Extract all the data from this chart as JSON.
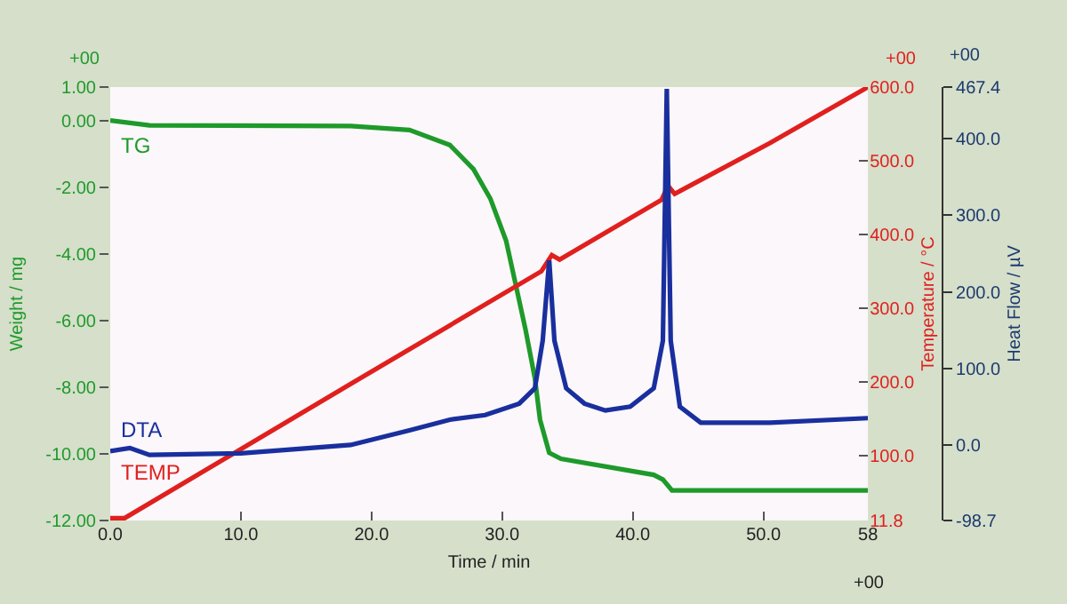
{
  "chart_data": {
    "type": "line",
    "xlabel": "Time / min",
    "ylabel": "Weight / mg",
    "y2label": "Temperature / °C",
    "y3label": "Heat Flow / µV",
    "annotations": [
      "+00",
      "+00",
      "+00",
      "+00"
    ],
    "xlim": [
      0,
      58
    ],
    "xticks": [
      {
        "value": 0,
        "label": "0.0"
      },
      {
        "value": 10,
        "label": "10.0"
      },
      {
        "value": 20,
        "label": "20.0"
      },
      {
        "value": 30,
        "label": "30.0"
      },
      {
        "value": 40,
        "label": "40.0"
      },
      {
        "value": 50,
        "label": "50.0"
      },
      58
    ],
    "ylim": [
      -12,
      1
    ],
    "yticks": [
      {
        "value": 1,
        "label": "1.00"
      },
      {
        "value": 0,
        "label": "0.00"
      },
      {
        "value": -2,
        "label": "-2.00"
      },
      {
        "value": -4,
        "label": "-4.00"
      },
      {
        "value": -6,
        "label": "-6.00"
      },
      {
        "value": -8,
        "label": "-8.00"
      },
      {
        "value": -10,
        "label": "-10.00"
      },
      {
        "value": -12,
        "label": "-12.00"
      }
    ],
    "y2lim": [
      11.8,
      600
    ],
    "y2ticks": [
      11.8,
      {
        "value": 100,
        "label": "100.0"
      },
      {
        "value": 200,
        "label": "200.0"
      },
      {
        "value": 300,
        "label": "300.0"
      },
      {
        "value": 400,
        "label": "400.0"
      },
      {
        "value": 500,
        "label": "500.0"
      },
      {
        "value": 600,
        "label": "600.0"
      }
    ],
    "y3lim": [
      -98.7,
      467.4
    ],
    "y3ticks": [
      -98.7,
      {
        "value": 0,
        "label": "0.0"
      },
      {
        "value": 100,
        "label": "100.0"
      },
      {
        "value": 200,
        "label": "200.0"
      },
      {
        "value": 300,
        "label": "300.0"
      },
      {
        "value": 400,
        "label": "400.0"
      },
      467.4
    ],
    "grid": false,
    "legend": false,
    "marker": "none",
    "line_style": "solid",
    "series": [
      {
        "name": "TG",
        "color": "#1e9a2a",
        "axis": "y",
        "x": [
          0,
          3,
          18.4,
          22.9,
          26.0,
          27.8,
          29.1,
          30.3,
          31.1,
          31.8,
          32.5,
          32.9,
          33.6,
          34.5,
          41.6,
          42.3,
          43.0,
          50.5,
          58
        ],
        "values": [
          0,
          -0.15,
          -0.17,
          -0.29,
          -0.74,
          -1.46,
          -2.35,
          -3.61,
          -5.04,
          -6.3,
          -7.73,
          -8.98,
          -9.97,
          -10.15,
          -10.63,
          -10.77,
          -11.1,
          -11.1,
          -11.1
        ]
      },
      {
        "name": "DTA",
        "color": "#1a2f9e",
        "axis": "y3",
        "x": [
          0,
          1.5,
          3,
          10,
          18.4,
          22.9,
          26.0,
          28.7,
          31.3,
          32.5,
          33.1,
          33.6,
          34.0,
          34.9,
          36.3,
          37.9,
          39.8,
          41.6,
          42.3,
          42.6,
          42.9,
          43.6,
          45.2,
          50.5,
          58
        ],
        "values": [
          -8,
          -4,
          -13,
          -11,
          0,
          19,
          33,
          39,
          54,
          74,
          136,
          241,
          136,
          74,
          54,
          45,
          50,
          74,
          136,
          465,
          136,
          50,
          29,
          29,
          35
        ]
      },
      {
        "name": "TEMP",
        "color": "#e0201e",
        "axis": "y2",
        "x": [
          0,
          1.1,
          18.4,
          33.0,
          33.8,
          34.4,
          42.2,
          42.7,
          43.2,
          50.5,
          58
        ],
        "values": [
          15,
          15,
          197,
          350,
          372,
          366,
          447,
          466,
          455,
          524,
          600
        ]
      }
    ]
  }
}
